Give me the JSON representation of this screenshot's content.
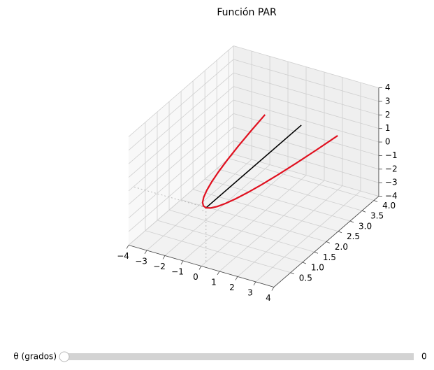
{
  "chart_data": {
    "type": "line3d",
    "title": "Función PAR",
    "xlim": [
      -4,
      4
    ],
    "ylim": [
      -0.2,
      4.2
    ],
    "zlim": [
      -4,
      4
    ],
    "xticks": [
      {
        "value": -4,
        "label": "−4"
      },
      {
        "value": -3,
        "label": "−3"
      },
      {
        "value": -2,
        "label": "−2"
      },
      {
        "value": -1,
        "label": "−1"
      },
      0,
      1,
      2,
      3,
      4
    ],
    "yticks": [
      0.5,
      {
        "value": 1,
        "label": "1.0"
      },
      1.5,
      {
        "value": 2,
        "label": "2.0"
      },
      2.5,
      {
        "value": 3,
        "label": "3.0"
      },
      3.5,
      {
        "value": 4,
        "label": "4.0"
      }
    ],
    "zticks": [
      {
        "value": -4,
        "label": "−4"
      },
      {
        "value": -3,
        "label": "−3"
      },
      {
        "value": -2,
        "label": "−2"
      },
      {
        "value": -1,
        "label": "−1"
      },
      0,
      1,
      2,
      3,
      4
    ],
    "grid": true,
    "series": [
      {
        "color": "#e0101f",
        "x": [
          -2,
          -1.8,
          -1.6,
          -1.4,
          -1.2,
          -1,
          -0.8,
          -0.6,
          -0.4,
          -0.2,
          0,
          0.2,
          0.4,
          0.6,
          0.8,
          1,
          1.2,
          1.4,
          1.6,
          1.8,
          2
        ],
        "y": [
          4,
          3.24,
          2.56,
          1.96,
          1.44,
          1,
          0.64,
          0.36,
          0.16,
          0.04,
          0,
          0.04,
          0.16,
          0.36,
          0.64,
          1,
          1.44,
          1.96,
          2.56,
          3.24,
          4
        ],
        "z": [
          0,
          0,
          0,
          0,
          0,
          0,
          0,
          0,
          0,
          0,
          0,
          0,
          0,
          0,
          0,
          0,
          0,
          0,
          0,
          0,
          0
        ]
      },
      {
        "color": "#000000",
        "x": [
          0,
          0
        ],
        "y": [
          0,
          4
        ],
        "z": [
          0,
          0
        ]
      }
    ],
    "slider": {
      "label": "θ (grados)",
      "value": 0
    }
  }
}
